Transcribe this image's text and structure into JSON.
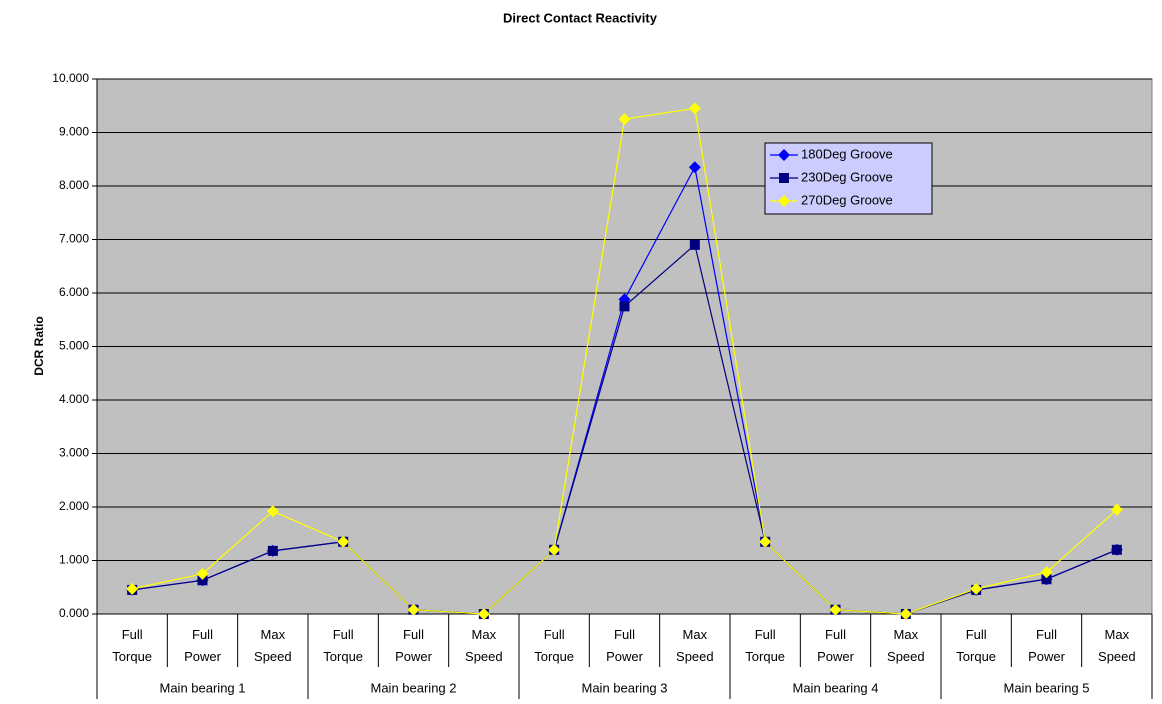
{
  "chart_data": {
    "type": "line",
    "title": "Direct Contact Reactivity",
    "y_label": "DCR Ratio",
    "categories": [
      "Full Torque",
      "Full Power",
      "Max Speed",
      "Full Torque",
      "Full Power",
      "Max Speed",
      "Full Torque",
      "Full Power",
      "Max Speed",
      "Full Torque",
      "Full Power",
      "Max Speed",
      "Full Torque",
      "Full Power",
      "Max Speed"
    ],
    "category_groups": [
      "Main bearing 1",
      "Main bearing 2",
      "Main bearing 3",
      "Main bearing 4",
      "Main bearing 5"
    ],
    "series": [
      {
        "name": "180Deg Groove",
        "color": "#0000ff",
        "marker": "diamond",
        "values": [
          0.45,
          0.63,
          1.18,
          1.35,
          0.08,
          0.0,
          1.2,
          5.88,
          8.35,
          1.35,
          0.08,
          0.0,
          0.45,
          0.65,
          1.2
        ]
      },
      {
        "name": "230Deg Groove",
        "color": "#000080",
        "marker": "square",
        "values": [
          0.45,
          0.63,
          1.18,
          1.35,
          0.08,
          0.0,
          1.2,
          5.75,
          6.9,
          1.35,
          0.08,
          0.0,
          0.45,
          0.65,
          1.2
        ]
      },
      {
        "name": "270Deg Groove",
        "color": "#ffff00",
        "marker": "diamond",
        "values": [
          0.47,
          0.75,
          1.92,
          1.35,
          0.08,
          0.0,
          1.2,
          9.25,
          9.45,
          1.35,
          0.08,
          0.0,
          0.47,
          0.78,
          1.95
        ]
      }
    ],
    "ylim": [
      0,
      10
    ],
    "yticks": [
      {
        "value": 0,
        "label": "0.000"
      },
      {
        "value": 1,
        "label": "1.000"
      },
      {
        "value": 2,
        "label": "2.000"
      },
      {
        "value": 3,
        "label": "3.000"
      },
      {
        "value": 4,
        "label": "4.000"
      },
      {
        "value": 5,
        "label": "5.000"
      },
      {
        "value": 6,
        "label": "6.000"
      },
      {
        "value": 7,
        "label": "7.000"
      },
      {
        "value": 8,
        "label": "8.000"
      },
      {
        "value": 9,
        "label": "9.000"
      },
      {
        "value": 10,
        "label": "10.000"
      }
    ],
    "grid": true,
    "plot_background": "#c0c0c0"
  }
}
